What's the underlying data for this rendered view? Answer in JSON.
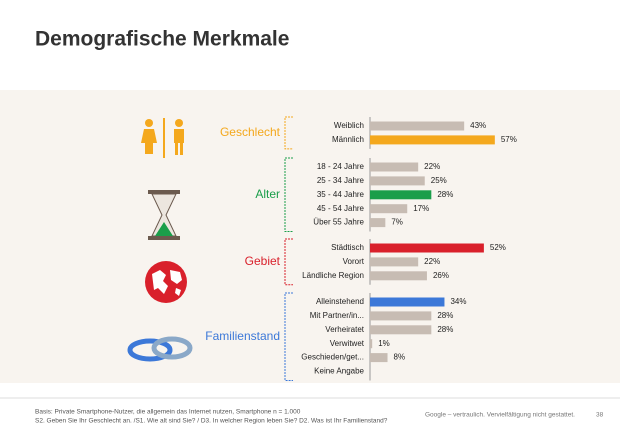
{
  "chart_data": {
    "type": "bar",
    "title": "Demografische Merkmale",
    "groups": [
      {
        "name": "Geschlecht",
        "color": "#f4a81d",
        "categories": [
          "Weiblich",
          "Männlich"
        ],
        "values": [
          43,
          57
        ],
        "value_labels": [
          "43%",
          "57%"
        ],
        "colors": [
          "#c7bcb3",
          "#f4a81d"
        ]
      },
      {
        "name": "Alter",
        "color": "#1a9e4a",
        "categories": [
          "18 - 24 Jahre",
          "25 - 34 Jahre",
          "35 - 44 Jahre",
          "45 - 54 Jahre",
          "Über 55 Jahre"
        ],
        "values": [
          22,
          25,
          28,
          17,
          7
        ],
        "value_labels": [
          "22%",
          "25%",
          "28%",
          "17%",
          "7%"
        ],
        "colors": [
          "#c7bcb3",
          "#c7bcb3",
          "#1a9e4a",
          "#c7bcb3",
          "#c7bcb3"
        ]
      },
      {
        "name": "Gebiet",
        "color": "#d9202b",
        "categories": [
          "Städtisch",
          "Vorort",
          "Ländliche Region"
        ],
        "values": [
          52,
          22,
          26
        ],
        "value_labels": [
          "52%",
          "22%",
          "26%"
        ],
        "colors": [
          "#d9202b",
          "#c7bcb3",
          "#c7bcb3"
        ]
      },
      {
        "name": "Familienstand",
        "color": "#3c78d8",
        "categories": [
          "Alleinstehend",
          "Mit Partner/in...",
          "Verheiratet",
          "Verwitwet",
          "Geschieden/get...",
          "Keine Angabe"
        ],
        "values": [
          34,
          28,
          28,
          1,
          8,
          null
        ],
        "value_labels": [
          "34%",
          "28%",
          "28%",
          "1%",
          "8%",
          null
        ],
        "colors": [
          "#3c78d8",
          "#c7bcb3",
          "#c7bcb3",
          "#c7bcb3",
          "#c7bcb3",
          "#c7bcb3"
        ]
      }
    ]
  },
  "footer": {
    "basis": "Basis: Private Smartphone-Nutzer, die allgemein das Internet nutzen, Smartphone n = 1.000",
    "questions": "S2.     Geben Sie Ihr Geschlecht an. /S1. Wie alt sind Sie? / D3. In welcher Region leben Sie? D2. Was ist Ihr Familienstand?",
    "confidential": "Google – vertraulich. Vervielfältigung nicht gestattet.",
    "page": "38"
  }
}
